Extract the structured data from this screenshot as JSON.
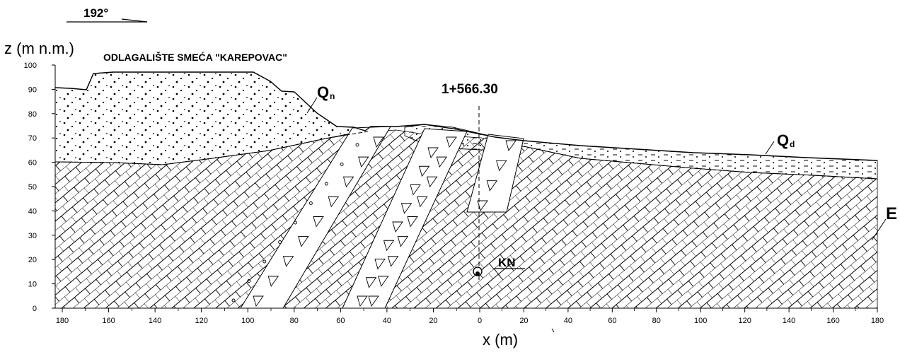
{
  "bearing": {
    "label": "192°"
  },
  "title": "ODLAGALIŠTE SMEĆA \"KAREPOVAC\"",
  "axes": {
    "ylabel": "z (m n.m.)",
    "xlabel": "x (m)",
    "y_ticks": [
      "100",
      "90",
      "80",
      "70",
      "60",
      "50",
      "40",
      "30",
      "20",
      "10",
      "0"
    ],
    "x_ticks": [
      "180",
      "160",
      "140",
      "120",
      "100",
      "80",
      "60",
      "40",
      "20",
      "0",
      "20",
      "40",
      "60",
      "80",
      "100",
      "120",
      "140",
      "160",
      "180"
    ],
    "y_range": [
      0,
      100
    ],
    "x_left_range": [
      180,
      0
    ],
    "x_right_range": [
      0,
      180
    ]
  },
  "units": {
    "qn": {
      "main": "Q",
      "sub": "n"
    },
    "qd": {
      "main": "Q",
      "sub": "d"
    },
    "e": "E"
  },
  "section": {
    "chainage": "1+566.30",
    "marker": "KN"
  },
  "colors": {
    "line": "#000000",
    "fill": "#ffffff"
  }
}
